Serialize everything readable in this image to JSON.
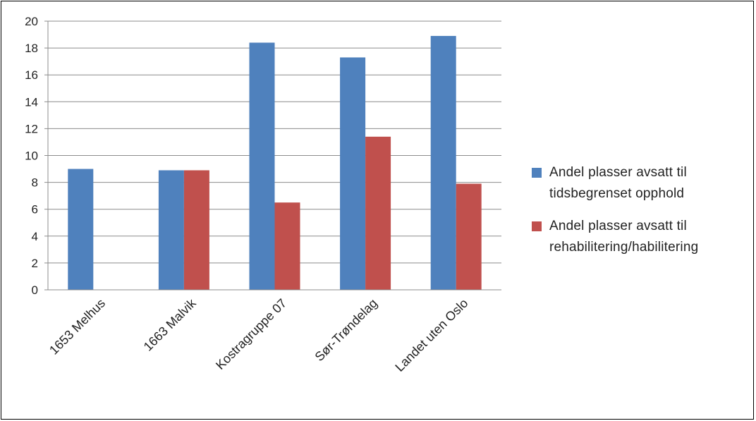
{
  "chart_data": {
    "type": "bar",
    "title": "",
    "xlabel": "",
    "ylabel": "",
    "ylim": [
      0,
      20
    ],
    "yticks": [
      0,
      2,
      4,
      6,
      8,
      10,
      12,
      14,
      16,
      18,
      20
    ],
    "grid": true,
    "legend_position": "right",
    "categories": [
      "1653 Melhus",
      "1663 Malvik",
      "Kostragruppe 07",
      "Sør-Trøndelag",
      "Landet uten Oslo"
    ],
    "series": [
      {
        "name": "Andel plasser avsatt til\ntidsbegrenset opphold",
        "color": "#4F81BD",
        "values": [
          9.0,
          8.9,
          18.4,
          17.3,
          18.9
        ]
      },
      {
        "name": "Andel plasser avsatt til\nrehabilitering/habilitering",
        "color": "#C0504D",
        "values": [
          null,
          8.9,
          6.5,
          11.4,
          7.9
        ]
      }
    ]
  }
}
